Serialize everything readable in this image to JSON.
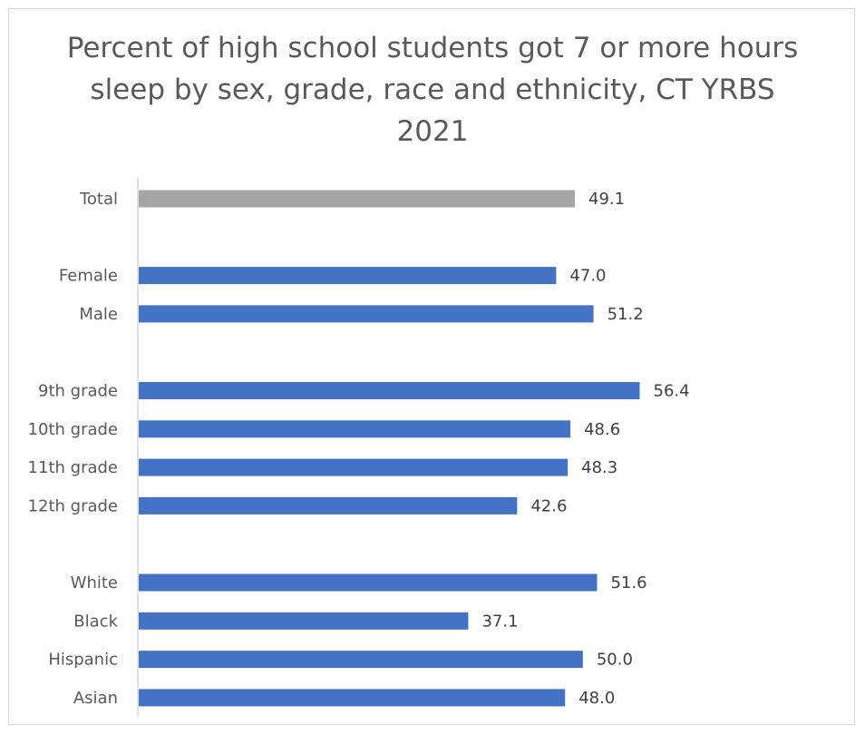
{
  "chart_data": {
    "type": "bar",
    "orientation": "horizontal",
    "title": "Percent of high school students got 7 or more hours sleep by sex, grade, race and ethnicity, CT YRBS 2021",
    "categories": [
      "Total",
      "",
      "Female",
      "Male",
      "",
      "9th grade",
      "10th grade",
      "11th grade",
      "12th grade",
      "",
      "White",
      "Black",
      "Hispanic",
      "Asian"
    ],
    "value_labels": [
      "49.1",
      "",
      "47.0",
      "51.2",
      "",
      "56.4",
      "48.6",
      "48.3",
      "42.6",
      "",
      "51.6",
      "37.1",
      "50.0",
      "48.0"
    ],
    "values": [
      49.1,
      null,
      47.0,
      51.2,
      null,
      56.4,
      48.6,
      48.3,
      42.6,
      null,
      51.6,
      37.1,
      50.0,
      48.0
    ],
    "xlim": [
      0,
      80
    ],
    "grid": false,
    "legend": "none",
    "colors": {
      "total": "#a5a5a5",
      "group": "#4472c4",
      "axis": "#d9d9d9"
    }
  }
}
